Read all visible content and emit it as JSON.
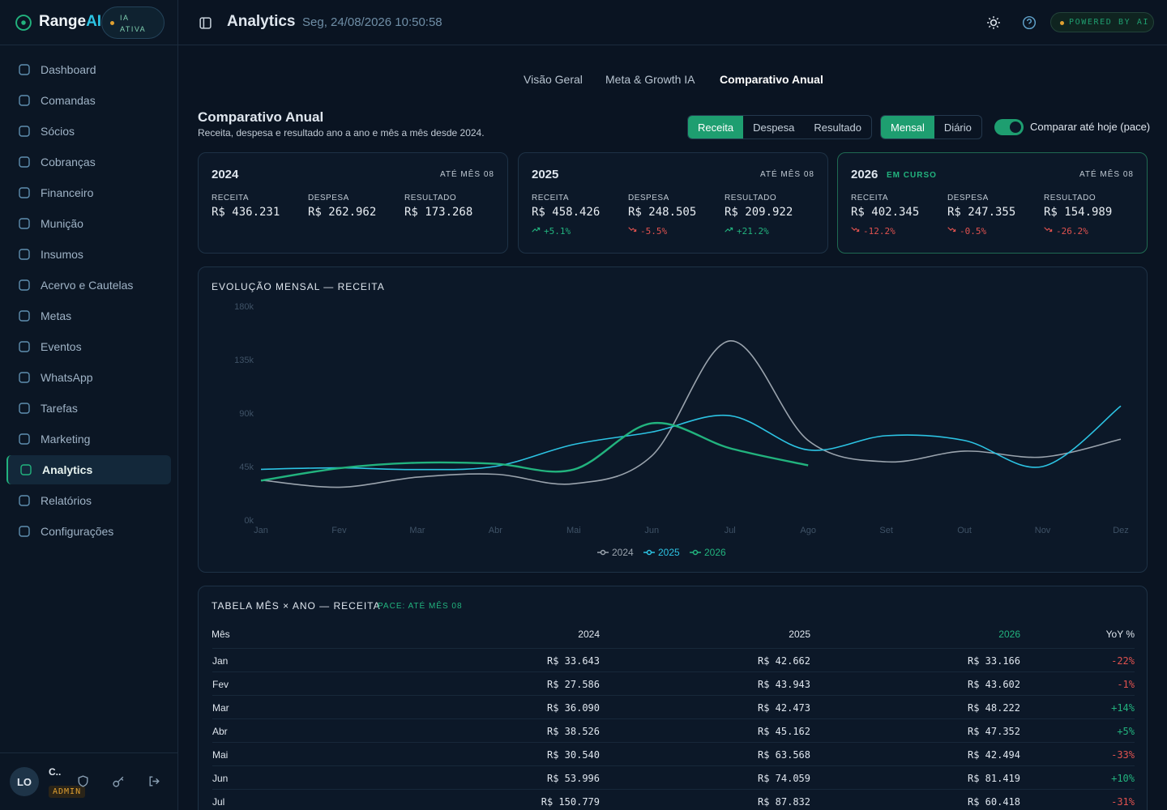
{
  "sidebar": {
    "brand": {
      "name": "Range",
      "accent": "AI"
    },
    "status": "IA ATIVA",
    "nav": [
      "Dashboard",
      "Comandas",
      "Sócios",
      "Cobranças",
      "Financeiro",
      "Munição",
      "Insumos",
      "Acervo e Cautelas",
      "Metas",
      "Eventos",
      "WhatsApp",
      "Tarefas",
      "Marketing",
      "Analytics",
      "Relatórios",
      "Configurações"
    ],
    "active": 13,
    "user": {
      "initials": "LO",
      "name": "C..",
      "role": "ADMIN"
    }
  },
  "header": {
    "title": "Analytics",
    "datetime": "Seg, 24/08/2026 10:50:58",
    "badge": "POWERED BY AI"
  },
  "tabs": {
    "items": [
      "Visão Geral",
      "Meta & Growth IA",
      "Comparativo Anual"
    ],
    "active": 2
  },
  "section": {
    "title": "Comparativo Anual",
    "subtitle": "Receita, despesa e resultado ano a ano e mês a mês desde 2024.",
    "metric_options": [
      "Receita",
      "Despesa",
      "Resultado"
    ],
    "metric_active": 0,
    "period_options": [
      "Mensal",
      "Diário"
    ],
    "period_active": 0,
    "pace_label": "Comparar até hoje (pace)",
    "pace_on": true
  },
  "cards": [
    {
      "year": "2024",
      "period": "ATÉ MÊS 08",
      "metrics": [
        {
          "label": "RECEITA",
          "value": "R$ 436.231"
        },
        {
          "label": "DESPESA",
          "value": "R$ 262.962"
        },
        {
          "label": "RESULTADO",
          "value": "R$ 173.268"
        }
      ]
    },
    {
      "year": "2025",
      "period": "ATÉ MÊS 08",
      "metrics": [
        {
          "label": "RECEITA",
          "value": "R$ 458.426",
          "change": "+5.1%"
        },
        {
          "label": "DESPESA",
          "value": "R$ 248.505",
          "change": "-5.5%"
        },
        {
          "label": "RESULTADO",
          "value": "R$ 209.922",
          "change": "+21.2%"
        }
      ]
    },
    {
      "year": "2026",
      "tag": "EM CURSO",
      "period": "ATÉ MÊS 08",
      "metrics": [
        {
          "label": "RECEITA",
          "value": "R$ 402.345",
          "change": "-12.2%"
        },
        {
          "label": "DESPESA",
          "value": "R$ 247.355",
          "change": "-0.5%"
        },
        {
          "label": "RESULTADO",
          "value": "R$ 154.989",
          "change": "-26.2%"
        }
      ]
    }
  ],
  "chart_data": {
    "type": "line",
    "title": "EVOLUÇÃO MENSAL — RECEITA",
    "categories": [
      "Jan",
      "Fev",
      "Mar",
      "Abr",
      "Mai",
      "Jun",
      "Jul",
      "Ago",
      "Set",
      "Out",
      "Nov",
      "Dez"
    ],
    "series": [
      {
        "name": "2024",
        "color": "#9aa3ad",
        "values": [
          33643,
          27586,
          36090,
          38526,
          30540,
          53996,
          150779,
          67000,
          49000,
          58000,
          53000,
          68000
        ]
      },
      {
        "name": "2025",
        "color": "#2cc3e3",
        "values": [
          42662,
          43943,
          42473,
          45162,
          63568,
          74059,
          87832,
          59000,
          71000,
          67000,
          45000,
          96000
        ]
      },
      {
        "name": "2026",
        "color": "#22b37e",
        "values": [
          33166,
          43602,
          48222,
          47352,
          42494,
          81419,
          60418,
          46000,
          null,
          null,
          null,
          null
        ]
      }
    ],
    "ylim": [
      0,
      180000
    ],
    "yticks": [
      {
        "value": 0,
        "label": "0k"
      },
      {
        "value": 45000,
        "label": "45k"
      },
      {
        "value": 90000,
        "label": "90k"
      },
      {
        "value": 135000,
        "label": "135k"
      },
      {
        "value": 180000,
        "label": "180k"
      }
    ],
    "grid": false
  },
  "table": {
    "title": "TABELA MÊS × ANO — RECEITA",
    "tag": "PACE: ATÉ MÊS 08",
    "columns": [
      "Mês",
      "2024",
      "2025",
      "2026",
      "YoY %"
    ],
    "rows": [
      [
        "Jan",
        "R$ 33.643",
        "R$ 42.662",
        "R$ 33.166",
        "-22%"
      ],
      [
        "Fev",
        "R$ 27.586",
        "R$ 43.943",
        "R$ 43.602",
        "-1%"
      ],
      [
        "Mar",
        "R$ 36.090",
        "R$ 42.473",
        "R$ 48.222",
        "+14%"
      ],
      [
        "Abr",
        "R$ 38.526",
        "R$ 45.162",
        "R$ 47.352",
        "+5%"
      ],
      [
        "Mai",
        "R$ 30.540",
        "R$ 63.568",
        "R$ 42.494",
        "-33%"
      ],
      [
        "Jun",
        "R$ 53.996",
        "R$ 74.059",
        "R$ 81.419",
        "+10%"
      ],
      [
        "Jul",
        "R$ 150.779",
        "R$ 87.832",
        "R$ 60.418",
        "-31%"
      ]
    ]
  }
}
